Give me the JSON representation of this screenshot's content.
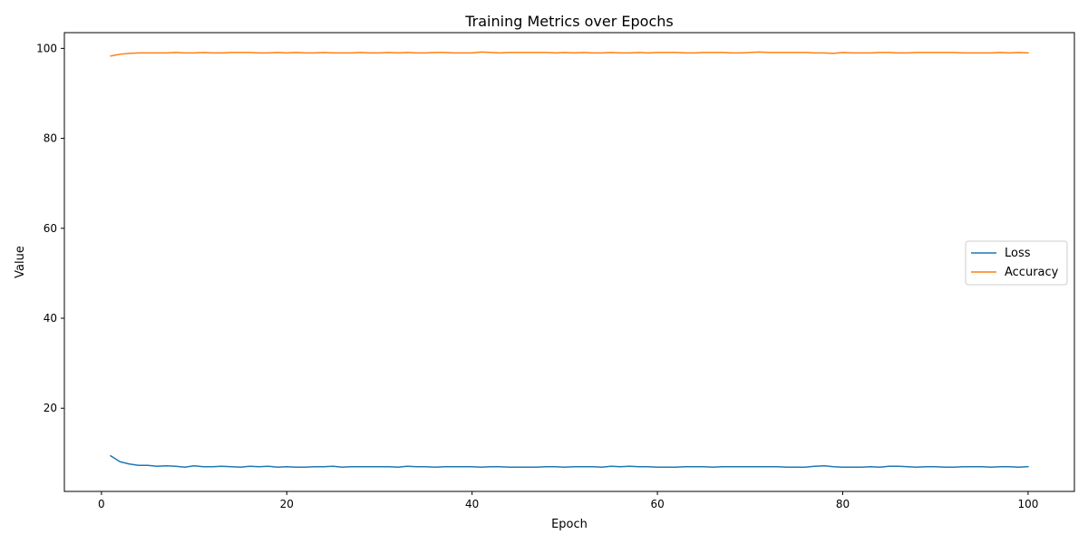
{
  "chart_data": {
    "type": "line",
    "title": "Training Metrics over Epochs",
    "xlabel": "Epoch",
    "ylabel": "Value",
    "xlim": [
      -4,
      105
    ],
    "ylim": [
      1.5,
      103.5
    ],
    "xticks": [
      0,
      20,
      40,
      60,
      80,
      100
    ],
    "yticks": [
      20,
      40,
      60,
      80,
      100
    ],
    "grid": false,
    "legend_position": "center-right",
    "series": [
      {
        "name": "Loss",
        "color": "#1f77b4",
        "values": [
          9.4,
          8.1,
          7.6,
          7.3,
          7.3,
          7.1,
          7.2,
          7.1,
          6.9,
          7.2,
          7.0,
          7.0,
          7.1,
          7.0,
          6.9,
          7.1,
          7.0,
          7.1,
          6.9,
          7.0,
          6.9,
          6.9,
          7.0,
          7.0,
          7.1,
          6.9,
          7.0,
          7.0,
          7.0,
          7.0,
          7.0,
          6.9,
          7.1,
          7.0,
          7.0,
          6.9,
          7.0,
          7.0,
          7.0,
          7.0,
          6.9,
          7.0,
          7.0,
          6.9,
          6.9,
          6.9,
          6.9,
          7.0,
          7.0,
          6.9,
          7.0,
          7.0,
          7.0,
          6.9,
          7.1,
          7.0,
          7.1,
          7.0,
          7.0,
          6.9,
          6.9,
          6.9,
          7.0,
          7.0,
          7.0,
          6.9,
          7.0,
          7.0,
          7.0,
          7.0,
          7.0,
          7.0,
          7.0,
          6.9,
          6.9,
          6.9,
          7.1,
          7.2,
          7.0,
          6.9,
          6.9,
          6.9,
          7.0,
          6.9,
          7.1,
          7.1,
          7.0,
          6.9,
          7.0,
          7.0,
          6.9,
          6.9,
          7.0,
          7.0,
          7.0,
          6.9,
          7.0,
          7.0,
          6.9,
          7.0
        ]
      },
      {
        "name": "Accuracy",
        "color": "#ff7f0e",
        "values": [
          98.3,
          98.7,
          98.9,
          99.0,
          99.0,
          99.0,
          99.0,
          99.1,
          99.0,
          99.0,
          99.1,
          99.0,
          99.0,
          99.1,
          99.1,
          99.1,
          99.0,
          99.0,
          99.1,
          99.0,
          99.1,
          99.0,
          99.0,
          99.1,
          99.0,
          99.0,
          99.0,
          99.1,
          99.0,
          99.0,
          99.1,
          99.0,
          99.1,
          99.0,
          99.0,
          99.1,
          99.1,
          99.0,
          99.0,
          99.0,
          99.2,
          99.1,
          99.0,
          99.1,
          99.1,
          99.1,
          99.1,
          99.1,
          99.0,
          99.1,
          99.0,
          99.1,
          99.0,
          99.0,
          99.1,
          99.0,
          99.0,
          99.1,
          99.0,
          99.1,
          99.1,
          99.1,
          99.0,
          99.0,
          99.1,
          99.1,
          99.1,
          99.0,
          99.0,
          99.1,
          99.2,
          99.1,
          99.1,
          99.1,
          99.1,
          99.1,
          99.0,
          99.0,
          98.9,
          99.1,
          99.0,
          99.0,
          99.0,
          99.1,
          99.1,
          99.0,
          99.0,
          99.1,
          99.1,
          99.1,
          99.1,
          99.1,
          99.0,
          99.0,
          99.0,
          99.0,
          99.1,
          99.0,
          99.1,
          99.0
        ]
      }
    ]
  }
}
